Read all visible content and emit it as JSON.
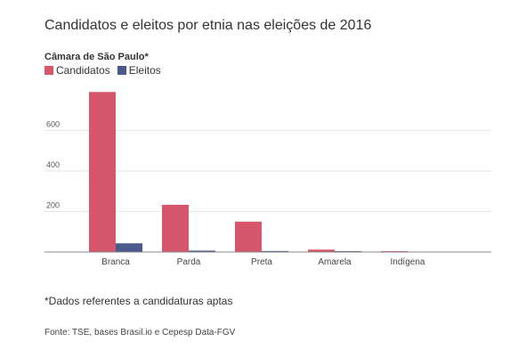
{
  "title": "Candidatos e eleitos por etnia nas eleições de 2016",
  "subtitle": "Câmara de São Paulo*",
  "footnote": "*Dados referentes a candidaturas aptas",
  "source": "Fonte: TSE, bases Brasil.io e Cepesp Data-FGV",
  "colors": {
    "candidatos": "#d6566b",
    "eleitos": "#4a5a8c",
    "grid": "#e6e6e6",
    "axis": "#888888"
  },
  "chart_data": {
    "type": "bar",
    "categories": [
      "Branca",
      "Parda",
      "Preta",
      "Amarela",
      "Indígena"
    ],
    "series": [
      {
        "name": "Candidatos",
        "values": [
          790,
          233,
          150,
          12,
          4
        ]
      },
      {
        "name": "Eleitos",
        "values": [
          43,
          7,
          5,
          2,
          0
        ]
      }
    ],
    "yticks": [
      200,
      400,
      600
    ],
    "ylim": [
      0,
      800
    ],
    "grid": true,
    "legend": "top-left"
  }
}
